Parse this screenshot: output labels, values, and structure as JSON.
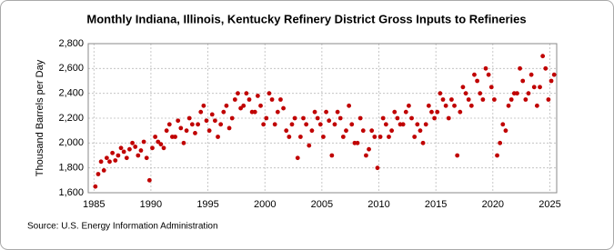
{
  "chart_data": {
    "type": "scatter",
    "title": "Monthly Indiana, Illinois, Kentucky Refinery District Gross Inputs to Refineries",
    "y_label": "Thousand Barrels per Day",
    "source": "Source: U.S. Energy Information Administration",
    "color": "#c00000",
    "grid": true,
    "xlim": [
      1984.5,
      2025.6
    ],
    "ylim": [
      1600,
      2800
    ],
    "xticks": [
      1985,
      1990,
      1995,
      2000,
      2005,
      2010,
      2015,
      2020,
      2025
    ],
    "yticks": [
      {
        "value": 1600,
        "label": "1,600"
      },
      {
        "value": 1800,
        "label": "1,800"
      },
      {
        "value": 2000,
        "label": "2,000"
      },
      {
        "value": 2200,
        "label": "2,200"
      },
      {
        "value": 2400,
        "label": "2,400"
      },
      {
        "value": 2600,
        "label": "2,600"
      },
      {
        "value": 2800,
        "label": "2,800"
      }
    ],
    "x": [
      1985.125,
      1985.375,
      1985.625,
      1985.875,
      1986.125,
      1986.375,
      1986.625,
      1986.875,
      1987.125,
      1987.375,
      1987.625,
      1987.875,
      1988.125,
      1988.375,
      1988.625,
      1988.875,
      1989.125,
      1989.375,
      1989.625,
      1989.875,
      1990.125,
      1990.375,
      1990.625,
      1990.875,
      1991.125,
      1991.375,
      1991.625,
      1991.875,
      1992.125,
      1992.375,
      1992.625,
      1992.875,
      1993.125,
      1993.375,
      1993.625,
      1993.875,
      1994.125,
      1994.375,
      1994.625,
      1994.875,
      1995.125,
      1995.375,
      1995.625,
      1995.875,
      1996.125,
      1996.375,
      1996.625,
      1996.875,
      1997.125,
      1997.375,
      1997.625,
      1997.875,
      1998.125,
      1998.375,
      1998.625,
      1998.875,
      1999.125,
      1999.375,
      1999.625,
      1999.875,
      2000.125,
      2000.375,
      2000.625,
      2000.875,
      2001.125,
      2001.375,
      2001.625,
      2001.875,
      2002.125,
      2002.375,
      2002.625,
      2002.875,
      2003.125,
      2003.375,
      2003.625,
      2003.875,
      2004.125,
      2004.375,
      2004.625,
      2004.875,
      2005.125,
      2005.375,
      2005.625,
      2005.875,
      2006.125,
      2006.375,
      2006.625,
      2006.875,
      2007.125,
      2007.375,
      2007.625,
      2007.875,
      2008.125,
      2008.375,
      2008.625,
      2008.875,
      2009.125,
      2009.375,
      2009.625,
      2009.875,
      2010.125,
      2010.375,
      2010.625,
      2010.875,
      2011.125,
      2011.375,
      2011.625,
      2011.875,
      2012.125,
      2012.375,
      2012.625,
      2012.875,
      2013.125,
      2013.375,
      2013.625,
      2013.875,
      2014.125,
      2014.375,
      2014.625,
      2014.875,
      2015.125,
      2015.375,
      2015.625,
      2015.875,
      2016.125,
      2016.375,
      2016.625,
      2016.875,
      2017.125,
      2017.375,
      2017.625,
      2017.875,
      2018.125,
      2018.375,
      2018.625,
      2018.875,
      2019.125,
      2019.375,
      2019.625,
      2019.875,
      2020.125,
      2020.375,
      2020.625,
      2020.875,
      2021.125,
      2021.375,
      2021.625,
      2021.875,
      2022.125,
      2022.375,
      2022.625,
      2022.875,
      2023.125,
      2023.375,
      2023.625,
      2023.875,
      2024.125,
      2024.375,
      2024.625,
      2024.875,
      2025.125,
      2025.375
    ],
    "values": [
      1650,
      1750,
      1850,
      1780,
      1880,
      1850,
      1920,
      1860,
      1900,
      1960,
      1930,
      1880,
      1950,
      2000,
      1970,
      1900,
      1940,
      2010,
      1880,
      1700,
      1960,
      2050,
      2010,
      1990,
      1960,
      2100,
      2150,
      2050,
      2050,
      2180,
      2120,
      2000,
      2100,
      2200,
      2150,
      2080,
      2150,
      2250,
      2300,
      2180,
      2100,
      2230,
      2180,
      2050,
      2150,
      2250,
      2300,
      2120,
      2200,
      2350,
      2400,
      2280,
      2300,
      2400,
      2350,
      2250,
      2250,
      2380,
      2300,
      2150,
      2200,
      2400,
      2350,
      2150,
      2250,
      2350,
      2280,
      2100,
      2050,
      2150,
      2200,
      1880,
      2050,
      2200,
      2150,
      1980,
      2100,
      2250,
      2200,
      2150,
      2050,
      2250,
      2180,
      1900,
      2150,
      2250,
      2200,
      2050,
      2100,
      2300,
      2150,
      2000,
      2000,
      2200,
      2100,
      1900,
      1950,
      2100,
      2050,
      1800,
      2050,
      2200,
      2150,
      2050,
      2100,
      2250,
      2200,
      2150,
      2150,
      2250,
      2300,
      2200,
      2050,
      2150,
      2100,
      2000,
      2150,
      2300,
      2250,
      2200,
      2250,
      2400,
      2350,
      2300,
      2200,
      2350,
      2300,
      1900,
      2250,
      2450,
      2400,
      2350,
      2300,
      2550,
      2500,
      2400,
      2350,
      2600,
      2550,
      2450,
      2350,
      1900,
      2000,
      2150,
      2100,
      2300,
      2350,
      2400,
      2400,
      2600,
      2500,
      2350,
      2400,
      2550,
      2450,
      2300,
      2450,
      2700,
      2600,
      2350,
      2500,
      2550
    ]
  }
}
